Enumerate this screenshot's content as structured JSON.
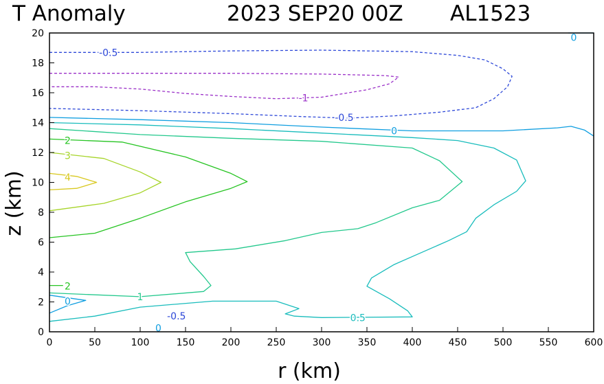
{
  "chart_data": {
    "type": "contour",
    "title": {
      "variable": "T Anomaly",
      "datetime": "2023 SEP20 00Z",
      "storm": "AL1523"
    },
    "xlabel": "r (km)",
    "ylabel": "z (km)",
    "xlim": [
      0,
      600
    ],
    "ylim": [
      0,
      20
    ],
    "xticks": [
      0,
      50,
      100,
      150,
      200,
      250,
      300,
      350,
      400,
      450,
      500,
      550,
      600
    ],
    "yticks": [
      0,
      2,
      4,
      6,
      8,
      10,
      12,
      14,
      16,
      18,
      20
    ],
    "contour_levels": [
      -1,
      -0.5,
      0,
      0.5,
      1,
      2,
      3,
      4
    ],
    "colors": {
      "-1": "#9a2fc8",
      "-0.5": "#2c47d8",
      "0": "#0f9ee0",
      "0.5": "#18bcbc",
      "1": "#22c88c",
      "2": "#26c422",
      "3": "#a6d428",
      "4": "#d8c81e"
    },
    "contours": [
      {
        "level": -0.5,
        "dashed": true,
        "points": [
          [
            0,
            18.7
          ],
          [
            100,
            18.7
          ],
          [
            200,
            18.8
          ],
          [
            300,
            18.85
          ],
          [
            400,
            18.75
          ],
          [
            450,
            18.5
          ],
          [
            480,
            18.2
          ],
          [
            500,
            17.6
          ],
          [
            510,
            17.1
          ],
          [
            505,
            16.4
          ],
          [
            490,
            15.6
          ],
          [
            470,
            15.0
          ],
          [
            430,
            14.7
          ],
          [
            380,
            14.45
          ],
          [
            330,
            14.3
          ],
          [
            280,
            14.4
          ],
          [
            200,
            14.6
          ],
          [
            100,
            14.8
          ],
          [
            0,
            14.95
          ]
        ]
      },
      {
        "level": -1,
        "dashed": true,
        "points": [
          [
            0,
            17.3
          ],
          [
            100,
            17.3
          ],
          [
            200,
            17.3
          ],
          [
            300,
            17.25
          ],
          [
            370,
            17.15
          ],
          [
            385,
            17.05
          ],
          [
            375,
            16.6
          ],
          [
            350,
            16.2
          ],
          [
            300,
            15.7
          ],
          [
            250,
            15.6
          ],
          [
            200,
            15.75
          ],
          [
            150,
            15.95
          ],
          [
            100,
            16.25
          ],
          [
            50,
            16.4
          ],
          [
            0,
            16.4
          ]
        ]
      },
      {
        "level": 0,
        "dashed": false,
        "points": [
          [
            0,
            14.35
          ],
          [
            100,
            14.2
          ],
          [
            200,
            14.0
          ],
          [
            300,
            13.7
          ],
          [
            400,
            13.45
          ],
          [
            500,
            13.45
          ],
          [
            560,
            13.65
          ],
          [
            575,
            13.75
          ],
          [
            590,
            13.5
          ],
          [
            600,
            13.1
          ]
        ]
      },
      {
        "level": 0,
        "dashed": false,
        "points": [
          [
            572,
            20.0
          ],
          [
            600,
            20.0
          ]
        ]
      },
      {
        "level": 0.5,
        "dashed": false,
        "points": [
          [
            0,
            14.0
          ],
          [
            100,
            13.85
          ],
          [
            200,
            13.6
          ],
          [
            300,
            13.3
          ],
          [
            400,
            13.0
          ],
          [
            450,
            12.8
          ],
          [
            490,
            12.3
          ],
          [
            515,
            11.5
          ],
          [
            525,
            10.1
          ],
          [
            515,
            9.4
          ],
          [
            490,
            8.5
          ],
          [
            470,
            7.6
          ],
          [
            460,
            6.7
          ],
          [
            440,
            6.1
          ],
          [
            410,
            5.3
          ],
          [
            380,
            4.5
          ],
          [
            355,
            3.6
          ],
          [
            350,
            3.05
          ],
          [
            375,
            2.2
          ],
          [
            395,
            1.4
          ],
          [
            400,
            1.0
          ],
          [
            300,
            0.95
          ],
          [
            270,
            1.05
          ],
          [
            260,
            1.2
          ],
          [
            275,
            1.55
          ],
          [
            250,
            2.05
          ],
          [
            180,
            2.05
          ],
          [
            100,
            1.65
          ],
          [
            50,
            1.05
          ],
          [
            0,
            0.7
          ]
        ]
      },
      {
        "level": 0.5,
        "dashed": false,
        "points": [
          [
            600,
            20.0
          ],
          [
            600,
            20.0
          ]
        ]
      },
      {
        "level": 1,
        "dashed": false,
        "points": [
          [
            0,
            13.6
          ],
          [
            100,
            13.2
          ],
          [
            200,
            12.95
          ],
          [
            300,
            12.75
          ],
          [
            400,
            12.3
          ],
          [
            430,
            11.45
          ],
          [
            455,
            10.05
          ],
          [
            430,
            8.8
          ],
          [
            400,
            8.3
          ],
          [
            360,
            7.3
          ],
          [
            340,
            6.9
          ],
          [
            300,
            6.65
          ],
          [
            260,
            6.1
          ],
          [
            205,
            5.55
          ],
          [
            150,
            5.3
          ],
          [
            155,
            4.7
          ],
          [
            170,
            3.7
          ],
          [
            178,
            3.1
          ],
          [
            170,
            2.7
          ],
          [
            100,
            2.35
          ],
          [
            0,
            2.6
          ]
        ]
      },
      {
        "level": 2,
        "dashed": false,
        "points": [
          [
            0,
            12.9
          ],
          [
            80,
            12.7
          ],
          [
            150,
            11.7
          ],
          [
            200,
            10.6
          ],
          [
            218,
            10.05
          ],
          [
            200,
            9.6
          ],
          [
            150,
            8.7
          ],
          [
            100,
            7.6
          ],
          [
            50,
            6.6
          ],
          [
            0,
            6.3
          ]
        ]
      },
      {
        "level": 2,
        "dashed": false,
        "points": [
          [
            0,
            3.1
          ],
          [
            15,
            3.1
          ]
        ]
      },
      {
        "level": 3,
        "dashed": false,
        "points": [
          [
            0,
            12.0
          ],
          [
            60,
            11.6
          ],
          [
            100,
            10.7
          ],
          [
            123,
            10.0
          ],
          [
            100,
            9.3
          ],
          [
            60,
            8.6
          ],
          [
            0,
            8.1
          ]
        ]
      },
      {
        "level": 4,
        "dashed": false,
        "points": [
          [
            0,
            10.6
          ],
          [
            30,
            10.4
          ],
          [
            52,
            10.0
          ],
          [
            30,
            9.6
          ],
          [
            0,
            9.5
          ]
        ]
      },
      {
        "level": 0,
        "dashed": false,
        "points": [
          [
            0,
            2.45
          ],
          [
            40,
            2.1
          ],
          [
            20,
            1.75
          ],
          [
            0,
            1.25
          ]
        ]
      }
    ],
    "contour_labels": [
      {
        "text": "-0.5",
        "x": 65,
        "y": 18.7
      },
      {
        "text": "-1",
        "x": 280,
        "y": 15.65
      },
      {
        "text": "-0.5",
        "x": 325,
        "y": 14.35
      },
      {
        "text": "0",
        "x": 380,
        "y": 13.45
      },
      {
        "text": "0",
        "x": 578,
        "y": 19.7
      },
      {
        "text": "2",
        "x": 20,
        "y": 12.8
      },
      {
        "text": "3",
        "x": 20,
        "y": 11.8
      },
      {
        "text": "4",
        "x": 20,
        "y": 10.35
      },
      {
        "text": "2",
        "x": 20,
        "y": 3.05
      },
      {
        "text": "0",
        "x": 20,
        "y": 2.05
      },
      {
        "text": "1",
        "x": 100,
        "y": 2.35
      },
      {
        "text": "-0.5",
        "x": 140,
        "y": 1.05
      },
      {
        "text": "0",
        "x": 120,
        "y": 0.25
      },
      {
        "text": "0.5",
        "x": 340,
        "y": 0.95
      }
    ]
  }
}
